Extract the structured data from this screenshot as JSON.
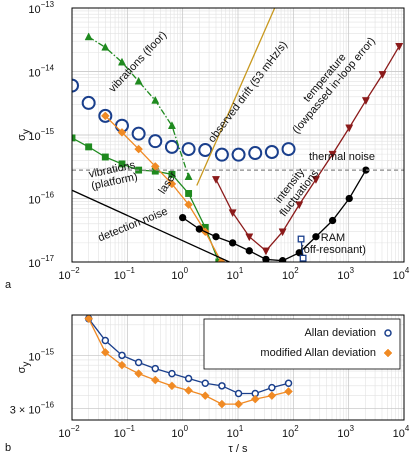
{
  "chart_data": [
    {
      "type": "line",
      "log_x": true,
      "log_y": true,
      "grid": true,
      "panel": "a",
      "ylabel": "σ",
      "ylabel_sub": "y",
      "xlim": [
        0.01,
        10000
      ],
      "ylim": [
        1e-17,
        1e-13
      ],
      "xticks": [
        {
          "value": 0.01,
          "label": "10",
          "exp": "−2"
        },
        {
          "value": 0.1,
          "label": "10",
          "exp": "−1"
        },
        {
          "value": 1,
          "label": "10",
          "exp": "0"
        },
        {
          "value": 10,
          "label": "10",
          "exp": "1"
        },
        {
          "value": 100,
          "label": "10",
          "exp": "2"
        },
        {
          "value": 1000,
          "label": "10",
          "exp": "3"
        },
        {
          "value": 10000,
          "label": "10",
          "exp": "4"
        }
      ],
      "yticks": [
        {
          "value": 1e-17,
          "label": "10",
          "exp": "−17"
        },
        {
          "value": 1e-16,
          "label": "10",
          "exp": "−16"
        },
        {
          "value": 1e-15,
          "label": "10",
          "exp": "−15"
        },
        {
          "value": 1e-14,
          "label": "10",
          "exp": "−14"
        },
        {
          "value": 1e-13,
          "label": "10",
          "exp": "−13"
        }
      ],
      "series": [
        {
          "color": "#1a3f8c",
          "marker": "circle-open",
          "line": false,
          "x": [
            0.01,
            0.02,
            0.04,
            0.08,
            0.16,
            0.32,
            0.64,
            1.28,
            2.56,
            5.12,
            10.24,
            20.48,
            40.96,
            81.92
          ],
          "values": [
            6e-15,
            3.2e-15,
            2e-15,
            1.4e-15,
            1.05e-15,
            8e-16,
            6.5e-16,
            6e-16,
            5.8e-16,
            4.9e-16,
            4.9e-16,
            5.2e-16,
            5.4e-16,
            6e-16
          ]
        },
        {
          "label": [
            "vibrations (floor)"
          ],
          "color": "#1f8a1f",
          "marker": "triangle",
          "dash": "6 2 1.5 2",
          "x": [
            0.02,
            0.04,
            0.08,
            0.16,
            0.32,
            0.64,
            1.28
          ],
          "values": [
            3.5e-14,
            2.4e-14,
            1.4e-14,
            7e-15,
            3.5e-15,
            1.4e-15,
            2.2e-16
          ]
        },
        {
          "label": [
            "vibrations",
            "(platform)"
          ],
          "color": "#1f8a1f",
          "marker": "square",
          "x": [
            0.01,
            0.02,
            0.04,
            0.08,
            0.16,
            0.32,
            0.64,
            1.28,
            2.56,
            4.5
          ],
          "values": [
            9e-16,
            6.5e-16,
            4.5e-16,
            3.5e-16,
            2.8e-16,
            2.7e-16,
            2.4e-16,
            1.2e-16,
            3.5e-17,
            1e-17
          ]
        },
        {
          "label": [
            "laser"
          ],
          "color": "#f08a24",
          "marker": "diamond",
          "x": [
            0.04,
            0.08,
            0.16,
            0.32,
            0.64,
            1.28,
            2.56,
            5
          ],
          "values": [
            2e-15,
            1.1e-15,
            6e-16,
            3.2e-16,
            1.7e-16,
            8e-17,
            3e-17,
            1e-17
          ]
        },
        {
          "label": [
            "intensity",
            "fluctuations"
          ],
          "color": "#000000",
          "marker": "dot",
          "x": [
            1,
            2,
            4,
            8,
            16,
            32,
            64,
            128,
            256,
            512,
            1024,
            2048
          ],
          "values": [
            5e-17,
            3.3e-17,
            2.5e-17,
            2e-17,
            1.5e-17,
            1.1e-17,
            1.05e-17,
            1.4e-17,
            2.5e-17,
            4.5e-17,
            1e-16,
            2.8e-16
          ]
        },
        {
          "label": [
            "temperature",
            "(lowpassed in-loop error)"
          ],
          "color": "#8b1a1a",
          "marker": "triangle-down",
          "x": [
            4,
            8,
            16,
            32,
            64,
            128,
            256,
            512,
            1024,
            2048,
            4096,
            8192
          ],
          "values": [
            2e-16,
            6e-17,
            2.5e-17,
            1.5e-17,
            3e-17,
            8e-17,
            2e-16,
            5e-16,
            1.3e-15,
            3.5e-15,
            9e-15,
            2.5e-14
          ]
        },
        {
          "label": [
            "detection noise"
          ],
          "color": "#000000",
          "x": [
            0.01,
            7
          ],
          "values": [
            1.35e-16,
            1e-17
          ]
        },
        {
          "label": [
            "observed drift (53 mHz/s)"
          ],
          "color": "#c8981e",
          "x": [
            1.8,
            46
          ],
          "values": [
            1.6e-16,
            1e-13
          ]
        },
        {
          "label": [
            "thermal noise"
          ],
          "color": "#888888",
          "dash": "4 3",
          "x": [
            0.01,
            10000
          ],
          "values": [
            2.8e-16,
            2.8e-16
          ]
        },
        {
          "label": [
            "RAM",
            "(off-resonant)"
          ],
          "color": "#1a3f8c",
          "marker": "square-open",
          "x": [
            138,
            150
          ],
          "values": [
            2.3e-17,
            1.15e-17
          ]
        }
      ]
    },
    {
      "type": "line",
      "log_x": true,
      "log_y": true,
      "grid": true,
      "panel": "b",
      "ylabel": "σ",
      "ylabel_sub": "y",
      "xlabel": "τ / s",
      "legend": "upper right",
      "xlim": [
        0.01,
        10000
      ],
      "ylim": [
        2.3e-16,
        2.5e-15
      ],
      "xticks": [
        {
          "value": 0.01,
          "label": "10",
          "exp": "−2"
        },
        {
          "value": 0.1,
          "label": "10",
          "exp": "−1"
        },
        {
          "value": 1,
          "label": "10",
          "exp": "0"
        },
        {
          "value": 10,
          "label": "10",
          "exp": "1"
        },
        {
          "value": 100,
          "label": "10",
          "exp": "2"
        },
        {
          "value": 1000,
          "label": "10",
          "exp": "3"
        },
        {
          "value": 10000,
          "label": "10",
          "exp": "4"
        }
      ],
      "yticks": [
        {
          "value": 3e-16,
          "label": "3 × 10",
          "exp": "−16"
        },
        {
          "value": 1e-15,
          "label": "10",
          "exp": "−15"
        }
      ],
      "series": [
        {
          "name": "Allan deviation",
          "color": "#1a3f8c",
          "marker": "circle-open",
          "x": [
            0.02,
            0.04,
            0.08,
            0.16,
            0.32,
            0.64,
            1.28,
            2.56,
            5.12,
            10.24,
            20.48,
            40.96,
            81.92
          ],
          "values": [
            2.3e-15,
            1.4e-15,
            1e-15,
            8.5e-16,
            7.4e-16,
            6.6e-16,
            5.9e-16,
            5.3e-16,
            5e-16,
            4.2e-16,
            4.2e-16,
            4.8e-16,
            5.3e-16
          ]
        },
        {
          "name": "modified Allan deviation",
          "color": "#f08a24",
          "marker": "diamond",
          "x": [
            0.02,
            0.04,
            0.08,
            0.16,
            0.32,
            0.64,
            1.28,
            2.56,
            5.12,
            10.24,
            20.48,
            40.96,
            81.92
          ],
          "values": [
            2.3e-15,
            1.07e-15,
            8e-16,
            6.6e-16,
            5.7e-16,
            5e-16,
            4.5e-16,
            4e-16,
            3.3e-16,
            3.3e-16,
            3.7e-16,
            4e-16,
            4.4e-16
          ]
        }
      ]
    }
  ]
}
